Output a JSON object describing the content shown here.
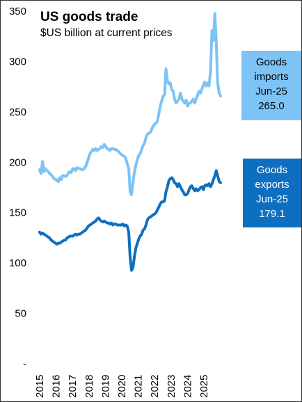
{
  "title": "US goods trade",
  "subtitle": "$US billion at current prices",
  "colors": {
    "imports": "#7dc3f5",
    "exports": "#0e6fc0",
    "imports_callout_bg": "#7dc3f5",
    "exports_callout_bg": "#0e6fc0"
  },
  "callouts": {
    "imports": {
      "line1": "Goods",
      "line2": "imports",
      "line3": "Jun-25",
      "line4": "265.0"
    },
    "exports": {
      "line1": "Goods",
      "line2": "exports",
      "line3": "Jun-25",
      "line4": "179.1"
    }
  },
  "chart_data": {
    "type": "line",
    "title": "US goods trade",
    "subtitle": "$US billion at current prices",
    "xlabel": "",
    "ylabel": "",
    "ylim": [
      0,
      350
    ],
    "y_ticks": [
      {
        "value": 0,
        "label": "-"
      },
      {
        "value": 50,
        "label": "50"
      },
      {
        "value": 100,
        "label": "100"
      },
      {
        "value": 150,
        "label": "150"
      },
      {
        "value": 200,
        "label": "200"
      },
      {
        "value": 250,
        "label": "250"
      },
      {
        "value": 300,
        "label": "300"
      },
      {
        "value": 350,
        "label": "350"
      }
    ],
    "x_ticks": [
      "2015",
      "2016",
      "2017",
      "2018",
      "2019",
      "2020",
      "2021",
      "2022",
      "2023",
      "2024",
      "2025"
    ],
    "xlim": [
      2015.0,
      2025.5
    ],
    "grid": false,
    "legend": "none",
    "series": [
      {
        "name": "Goods imports",
        "color": "#7dc3f5",
        "points": [
          [
            2015.0,
            192
          ],
          [
            2015.08,
            188
          ],
          [
            2015.17,
            200
          ],
          [
            2015.25,
            190
          ],
          [
            2015.33,
            193
          ],
          [
            2015.42,
            191
          ],
          [
            2015.5,
            190
          ],
          [
            2015.58,
            188
          ],
          [
            2015.67,
            187
          ],
          [
            2015.75,
            185
          ],
          [
            2015.83,
            183
          ],
          [
            2015.92,
            182
          ],
          [
            2016.0,
            182
          ],
          [
            2016.08,
            180
          ],
          [
            2016.17,
            184
          ],
          [
            2016.25,
            182
          ],
          [
            2016.33,
            186
          ],
          [
            2016.42,
            186
          ],
          [
            2016.5,
            185
          ],
          [
            2016.58,
            186
          ],
          [
            2016.67,
            189
          ],
          [
            2016.75,
            190
          ],
          [
            2016.83,
            189
          ],
          [
            2016.92,
            193
          ],
          [
            2017.0,
            193
          ],
          [
            2017.08,
            191
          ],
          [
            2017.17,
            194
          ],
          [
            2017.25,
            193
          ],
          [
            2017.33,
            193
          ],
          [
            2017.42,
            192
          ],
          [
            2017.5,
            192
          ],
          [
            2017.58,
            193
          ],
          [
            2017.67,
            195
          ],
          [
            2017.75,
            199
          ],
          [
            2017.83,
            203
          ],
          [
            2017.92,
            208
          ],
          [
            2018.0,
            210
          ],
          [
            2018.08,
            212
          ],
          [
            2018.17,
            211
          ],
          [
            2018.25,
            213
          ],
          [
            2018.33,
            211
          ],
          [
            2018.42,
            212
          ],
          [
            2018.5,
            213
          ],
          [
            2018.58,
            215
          ],
          [
            2018.67,
            214
          ],
          [
            2018.75,
            217
          ],
          [
            2018.83,
            215
          ],
          [
            2018.92,
            213
          ],
          [
            2019.0,
            212
          ],
          [
            2019.08,
            211
          ],
          [
            2019.17,
            213
          ],
          [
            2019.25,
            213
          ],
          [
            2019.33,
            212
          ],
          [
            2019.42,
            212
          ],
          [
            2019.5,
            211
          ],
          [
            2019.58,
            210
          ],
          [
            2019.67,
            208
          ],
          [
            2019.75,
            207
          ],
          [
            2019.83,
            206
          ],
          [
            2019.92,
            205
          ],
          [
            2020.0,
            203
          ],
          [
            2020.08,
            198
          ],
          [
            2020.17,
            193
          ],
          [
            2020.25,
            170
          ],
          [
            2020.33,
            167
          ],
          [
            2020.42,
            180
          ],
          [
            2020.5,
            190
          ],
          [
            2020.58,
            196
          ],
          [
            2020.67,
            202
          ],
          [
            2020.75,
            206
          ],
          [
            2020.83,
            208
          ],
          [
            2020.92,
            212
          ],
          [
            2021.0,
            216
          ],
          [
            2021.08,
            218
          ],
          [
            2021.17,
            224
          ],
          [
            2021.25,
            227
          ],
          [
            2021.33,
            228
          ],
          [
            2021.42,
            229
          ],
          [
            2021.5,
            232
          ],
          [
            2021.58,
            235
          ],
          [
            2021.67,
            237
          ],
          [
            2021.75,
            238
          ],
          [
            2021.83,
            240
          ],
          [
            2021.92,
            248
          ],
          [
            2022.0,
            255
          ],
          [
            2022.08,
            260
          ],
          [
            2022.17,
            265
          ],
          [
            2022.25,
            266
          ],
          [
            2022.33,
            292
          ],
          [
            2022.42,
            280
          ],
          [
            2022.5,
            277
          ],
          [
            2022.58,
            278
          ],
          [
            2022.67,
            271
          ],
          [
            2022.75,
            270
          ],
          [
            2022.83,
            262
          ],
          [
            2022.92,
            258
          ],
          [
            2023.0,
            260
          ],
          [
            2023.08,
            262
          ],
          [
            2023.17,
            268
          ],
          [
            2023.25,
            262
          ],
          [
            2023.33,
            260
          ],
          [
            2023.42,
            258
          ],
          [
            2023.5,
            261
          ],
          [
            2023.58,
            255
          ],
          [
            2023.67,
            258
          ],
          [
            2023.75,
            258
          ],
          [
            2023.83,
            260
          ],
          [
            2023.92,
            262
          ],
          [
            2024.0,
            258
          ],
          [
            2024.08,
            262
          ],
          [
            2024.17,
            266
          ],
          [
            2024.25,
            270
          ],
          [
            2024.33,
            268
          ],
          [
            2024.42,
            272
          ],
          [
            2024.5,
            276
          ],
          [
            2024.58,
            279
          ],
          [
            2024.67,
            275
          ],
          [
            2024.75,
            278
          ],
          [
            2024.83,
            275
          ],
          [
            2024.92,
            290
          ],
          [
            2025.0,
            330
          ],
          [
            2025.08,
            320
          ],
          [
            2025.17,
            347
          ],
          [
            2025.25,
            318
          ],
          [
            2025.33,
            278
          ],
          [
            2025.42,
            268
          ],
          [
            2025.5,
            265.0
          ]
        ]
      },
      {
        "name": "Goods exports",
        "color": "#0e6fc0",
        "points": [
          [
            2015.0,
            130
          ],
          [
            2015.08,
            128
          ],
          [
            2015.17,
            129
          ],
          [
            2015.25,
            128
          ],
          [
            2015.33,
            127
          ],
          [
            2015.42,
            126
          ],
          [
            2015.5,
            125
          ],
          [
            2015.58,
            124
          ],
          [
            2015.67,
            122
          ],
          [
            2015.75,
            121
          ],
          [
            2015.83,
            120
          ],
          [
            2015.92,
            119
          ],
          [
            2016.0,
            118
          ],
          [
            2016.08,
            119
          ],
          [
            2016.17,
            119
          ],
          [
            2016.25,
            120
          ],
          [
            2016.33,
            121
          ],
          [
            2016.42,
            122
          ],
          [
            2016.5,
            122
          ],
          [
            2016.58,
            124
          ],
          [
            2016.67,
            125
          ],
          [
            2016.75,
            126
          ],
          [
            2016.83,
            126
          ],
          [
            2016.92,
            126
          ],
          [
            2017.0,
            127
          ],
          [
            2017.08,
            128
          ],
          [
            2017.17,
            127
          ],
          [
            2017.25,
            128
          ],
          [
            2017.33,
            128
          ],
          [
            2017.42,
            129
          ],
          [
            2017.5,
            130
          ],
          [
            2017.58,
            131
          ],
          [
            2017.67,
            132
          ],
          [
            2017.75,
            134
          ],
          [
            2017.83,
            136
          ],
          [
            2017.92,
            137
          ],
          [
            2018.0,
            138
          ],
          [
            2018.08,
            139
          ],
          [
            2018.17,
            140
          ],
          [
            2018.25,
            141
          ],
          [
            2018.33,
            143
          ],
          [
            2018.42,
            144
          ],
          [
            2018.5,
            142
          ],
          [
            2018.58,
            141
          ],
          [
            2018.67,
            140
          ],
          [
            2018.75,
            141
          ],
          [
            2018.83,
            140
          ],
          [
            2018.92,
            139
          ],
          [
            2019.0,
            139
          ],
          [
            2019.08,
            138
          ],
          [
            2019.17,
            139
          ],
          [
            2019.25,
            137
          ],
          [
            2019.33,
            138
          ],
          [
            2019.42,
            138
          ],
          [
            2019.5,
            137
          ],
          [
            2019.58,
            137
          ],
          [
            2019.67,
            137
          ],
          [
            2019.75,
            137
          ],
          [
            2019.83,
            138
          ],
          [
            2019.92,
            136
          ],
          [
            2020.0,
            137
          ],
          [
            2020.08,
            136
          ],
          [
            2020.17,
            130
          ],
          [
            2020.25,
            105
          ],
          [
            2020.33,
            92
          ],
          [
            2020.42,
            95
          ],
          [
            2020.5,
            106
          ],
          [
            2020.58,
            114
          ],
          [
            2020.67,
            119
          ],
          [
            2020.75,
            123
          ],
          [
            2020.83,
            126
          ],
          [
            2020.92,
            128
          ],
          [
            2021.0,
            132
          ],
          [
            2021.08,
            133
          ],
          [
            2021.17,
            137
          ],
          [
            2021.25,
            142
          ],
          [
            2021.33,
            144
          ],
          [
            2021.42,
            145
          ],
          [
            2021.5,
            146
          ],
          [
            2021.58,
            147
          ],
          [
            2021.67,
            148
          ],
          [
            2021.75,
            149
          ],
          [
            2021.83,
            152
          ],
          [
            2021.92,
            155
          ],
          [
            2022.0,
            158
          ],
          [
            2022.08,
            160
          ],
          [
            2022.17,
            160
          ],
          [
            2022.25,
            161
          ],
          [
            2022.33,
            170
          ],
          [
            2022.42,
            175
          ],
          [
            2022.5,
            181
          ],
          [
            2022.58,
            183
          ],
          [
            2022.67,
            184
          ],
          [
            2022.75,
            182
          ],
          [
            2022.83,
            179
          ],
          [
            2022.92,
            178
          ],
          [
            2023.0,
            175
          ],
          [
            2023.08,
            178
          ],
          [
            2023.17,
            175
          ],
          [
            2023.25,
            172
          ],
          [
            2023.33,
            170
          ],
          [
            2023.42,
            167
          ],
          [
            2023.5,
            167
          ],
          [
            2023.58,
            168
          ],
          [
            2023.67,
            172
          ],
          [
            2023.75,
            175
          ],
          [
            2023.83,
            176
          ],
          [
            2023.92,
            173
          ],
          [
            2024.0,
            171
          ],
          [
            2024.08,
            173
          ],
          [
            2024.17,
            171
          ],
          [
            2024.25,
            172
          ],
          [
            2024.33,
            174
          ],
          [
            2024.42,
            175
          ],
          [
            2024.5,
            172
          ],
          [
            2024.58,
            176
          ],
          [
            2024.67,
            177
          ],
          [
            2024.75,
            176
          ],
          [
            2024.83,
            178
          ],
          [
            2024.92,
            175
          ],
          [
            2025.0,
            178
          ],
          [
            2025.08,
            182
          ],
          [
            2025.17,
            186
          ],
          [
            2025.25,
            191
          ],
          [
            2025.33,
            186
          ],
          [
            2025.42,
            180
          ],
          [
            2025.5,
            179.1
          ]
        ]
      }
    ]
  }
}
